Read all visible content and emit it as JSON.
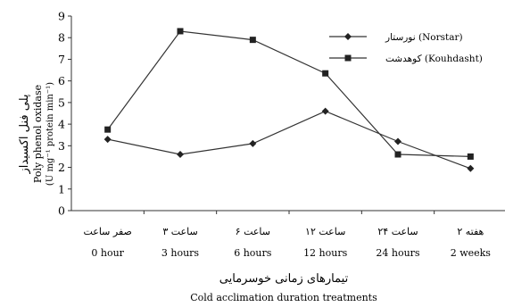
{
  "chart_data": {
    "type": "line",
    "title": "",
    "categories": [
      {
        "fa": "صفر ساعت",
        "en": "0 hour"
      },
      {
        "fa": "۳ ساعت",
        "en": "3 hours"
      },
      {
        "fa": "۶ ساعت",
        "en": "6 hours"
      },
      {
        "fa": "۱۲ ساعت",
        "en": "12 hours"
      },
      {
        "fa": "۲۴ ساعت",
        "en": "24 hours"
      },
      {
        "fa": "۲ هفته",
        "en": "2 weeks"
      }
    ],
    "series": [
      {
        "name": "نورستار (Norstar)",
        "marker": "diamond",
        "values": [
          3.3,
          2.6,
          3.1,
          4.6,
          3.2,
          1.95
        ]
      },
      {
        "name": "کوهدشت (Kouhdasht)",
        "marker": "square",
        "values": [
          3.75,
          8.3,
          7.9,
          6.35,
          2.6,
          2.5
        ]
      }
    ],
    "ylim": [
      0,
      9
    ],
    "yticks": [
      "0",
      "1",
      "2",
      "3",
      "4",
      "5",
      "6",
      "7",
      "8",
      "9"
    ],
    "ylabel_fa": "پلی فنل اکسیداز",
    "ylabel_en": "Poly phenol oxidase",
    "ylabel_unit": "(U mg⁻¹ protein min⁻¹)",
    "xlabel_fa": "تیمارهای زمانی خوسرمایی",
    "xlabel_en": "Cold acclimation duration treatments",
    "legend_position": "top-right",
    "grid": false,
    "line_color": "#333333"
  }
}
